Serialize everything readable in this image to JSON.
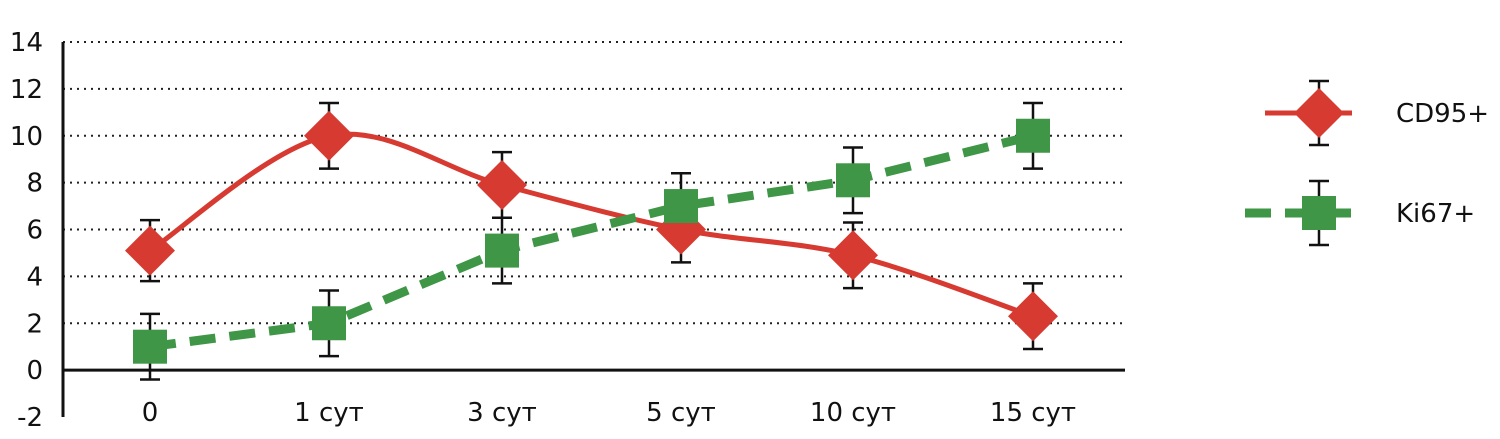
{
  "chart_data": {
    "type": "line",
    "categories": [
      "0",
      "1 сут",
      "3 сут",
      "5 сут",
      "10 сут",
      "15 сут"
    ],
    "ylim": [
      -2,
      14
    ],
    "yticks": [
      "14",
      "12",
      "10",
      "8",
      "6",
      "4",
      "2",
      "0",
      "-2"
    ],
    "ytick_values": [
      14,
      12,
      10,
      8,
      6,
      4,
      2,
      0,
      -2
    ],
    "grid": "horizontal dotted",
    "legend_position": "right",
    "series": [
      {
        "name": "CD95+",
        "values": [
          5.1,
          10.0,
          7.9,
          6.0,
          4.9,
          2.3
        ],
        "err": [
          1.3,
          1.4,
          1.4,
          1.4,
          1.4,
          1.4
        ],
        "color": "#d63a31",
        "line_style": "solid-smooth",
        "marker": "diamond"
      },
      {
        "name": "Ki67+",
        "values": [
          1.0,
          2.0,
          5.1,
          7.0,
          8.1,
          10.0
        ],
        "err": [
          1.4,
          1.4,
          1.4,
          1.4,
          1.4,
          1.4
        ],
        "color": "#3e9646",
        "line_style": "dashed",
        "marker": "square"
      }
    ]
  }
}
